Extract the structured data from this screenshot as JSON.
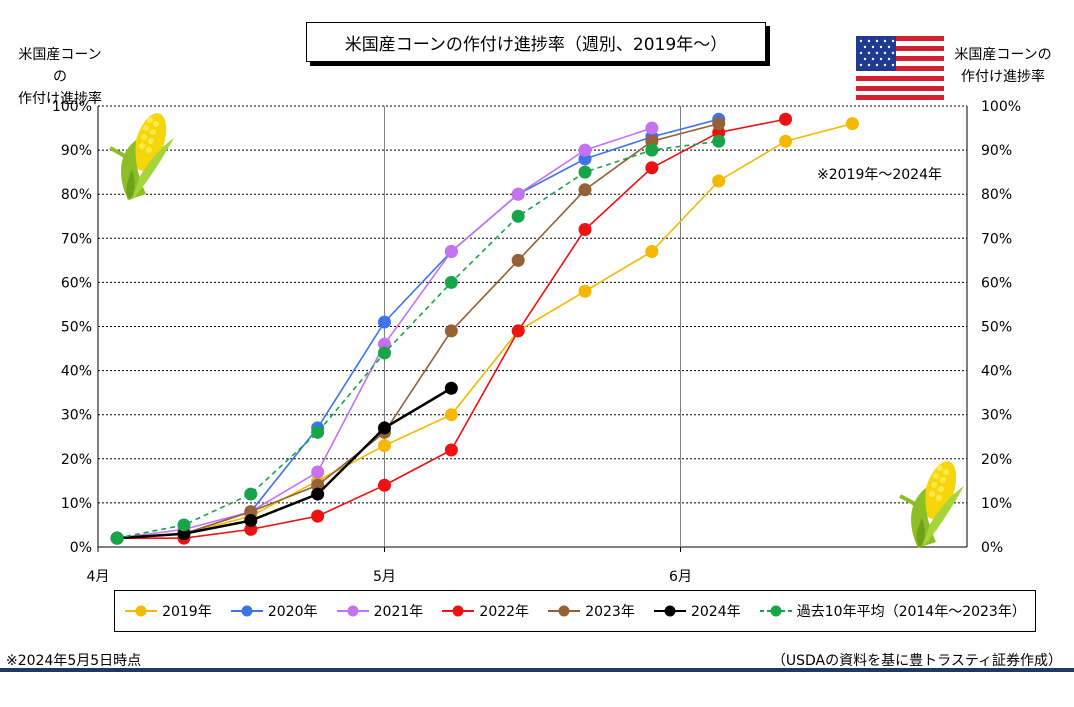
{
  "title": "米国産コーンの作付け進捗率（週別、2019年〜）",
  "y_label_left": [
    "米国産コーンの",
    "作付け進捗率"
  ],
  "y_label_right": [
    "米国産コーンの",
    "作付け進捗率"
  ],
  "note": "※2019年〜2024年",
  "footer_left": "※2024年5月5日時点",
  "footer_right": "（USDAの資料を基に豊トラスティ証券作成）",
  "chart_data": {
    "type": "line",
    "x_ticks": [
      "4月",
      "5月",
      "6月"
    ],
    "y_ticks": [
      "0%",
      "10%",
      "20%",
      "30%",
      "40%",
      "50%",
      "60%",
      "70%",
      "80%",
      "90%",
      "100%"
    ],
    "ylim": [
      0,
      100
    ],
    "grid": true,
    "legend_position": "bottom",
    "series": [
      {
        "name": "2019年",
        "color": "#f5b800",
        "dashed": false,
        "points": [
          [
            2,
            2
          ],
          [
            9,
            3
          ],
          [
            16,
            7
          ],
          [
            23,
            15
          ],
          [
            30,
            23
          ],
          [
            37,
            30
          ],
          [
            44,
            49
          ],
          [
            51,
            58
          ],
          [
            58,
            67
          ],
          [
            65,
            83
          ],
          [
            72,
            92
          ],
          [
            79,
            96
          ]
        ]
      },
      {
        "name": "2020年",
        "color": "#3d74e8",
        "dashed": false,
        "points": [
          [
            2,
            2
          ],
          [
            9,
            3
          ],
          [
            16,
            8
          ],
          [
            23,
            27
          ],
          [
            30,
            51
          ],
          [
            37,
            67
          ],
          [
            44,
            80
          ],
          [
            51,
            88
          ],
          [
            58,
            93
          ],
          [
            65,
            97
          ]
        ]
      },
      {
        "name": "2021年",
        "color": "#c472f0",
        "dashed": false,
        "points": [
          [
            2,
            2
          ],
          [
            9,
            4
          ],
          [
            16,
            8
          ],
          [
            23,
            17
          ],
          [
            30,
            46
          ],
          [
            37,
            67
          ],
          [
            44,
            80
          ],
          [
            51,
            90
          ],
          [
            58,
            95
          ]
        ]
      },
      {
        "name": "2022年",
        "color": "#ee1111",
        "dashed": false,
        "points": [
          [
            2,
            2
          ],
          [
            9,
            2
          ],
          [
            16,
            4
          ],
          [
            23,
            7
          ],
          [
            30,
            14
          ],
          [
            37,
            22
          ],
          [
            44,
            49
          ],
          [
            51,
            72
          ],
          [
            58,
            86
          ],
          [
            65,
            94
          ],
          [
            72,
            97
          ]
        ]
      },
      {
        "name": "2023年",
        "color": "#946235",
        "dashed": false,
        "points": [
          [
            2,
            2
          ],
          [
            9,
            3
          ],
          [
            16,
            8
          ],
          [
            23,
            14
          ],
          [
            30,
            26
          ],
          [
            37,
            49
          ],
          [
            44,
            65
          ],
          [
            51,
            81
          ],
          [
            58,
            92
          ],
          [
            65,
            96
          ]
        ]
      },
      {
        "name": "2024年",
        "color": "#000000",
        "dashed": false,
        "points": [
          [
            2,
            2
          ],
          [
            9,
            3
          ],
          [
            16,
            6
          ],
          [
            23,
            12
          ],
          [
            30,
            27
          ],
          [
            37,
            36
          ]
        ]
      },
      {
        "name": "過去10年平均（2014年〜2023年）",
        "color": "#17a44a",
        "dashed": true,
        "points": [
          [
            2,
            2
          ],
          [
            9,
            5
          ],
          [
            16,
            12
          ],
          [
            23,
            26
          ],
          [
            30,
            44
          ],
          [
            37,
            60
          ],
          [
            44,
            75
          ],
          [
            51,
            85
          ],
          [
            58,
            90
          ],
          [
            65,
            92
          ]
        ]
      }
    ]
  },
  "icons": {
    "flag": "us-flag-icon",
    "corn": "corn-icon"
  }
}
